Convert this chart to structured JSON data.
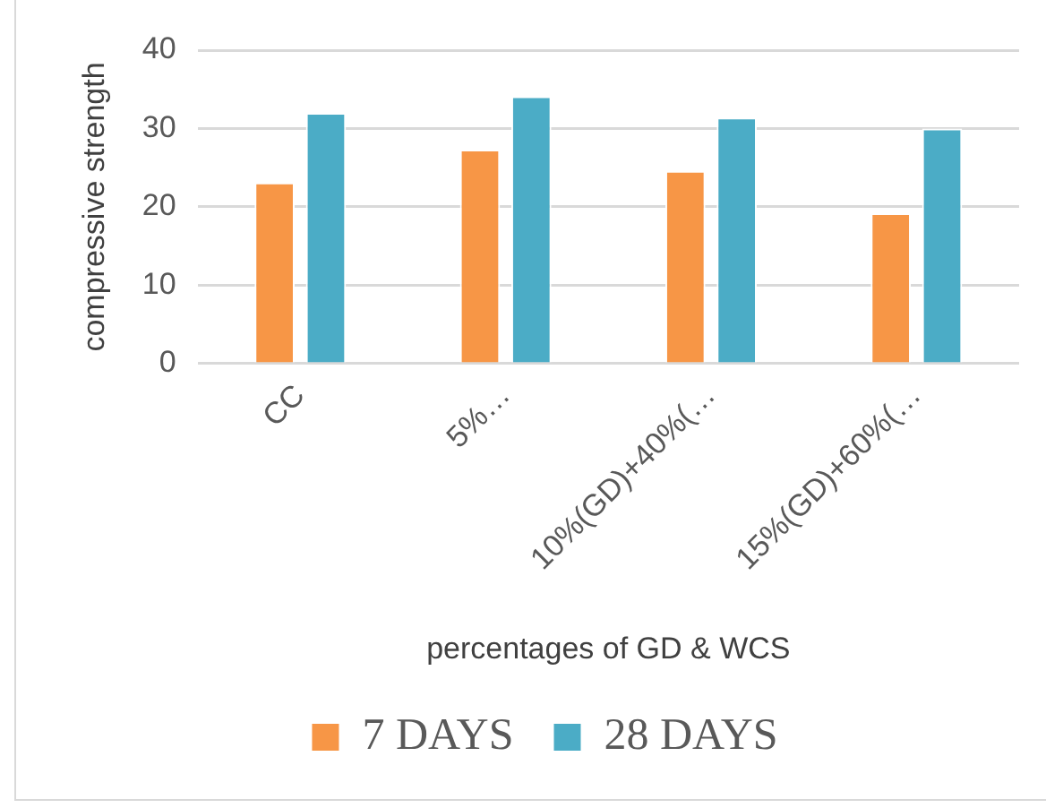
{
  "chart_data": {
    "type": "bar",
    "xlabel": "percentages of GD & WCS",
    "ylabel": "compressive strength",
    "categories": [
      "CC",
      "5%…",
      "10%(GD)+40%(…",
      "15%(GD)+60%(…"
    ],
    "series": [
      {
        "name": "7 DAYS",
        "color": "#f79646",
        "values": [
          23.1,
          27.3,
          24.6,
          19.2
        ]
      },
      {
        "name": "28 DAYS",
        "color": "#4bacc6",
        "values": [
          32.0,
          34.1,
          31.4,
          30.0
        ]
      }
    ],
    "ylim": [
      0,
      40
    ],
    "yticks": [
      0,
      10,
      20,
      30,
      40
    ],
    "grid": "y",
    "legend": "bottom"
  }
}
